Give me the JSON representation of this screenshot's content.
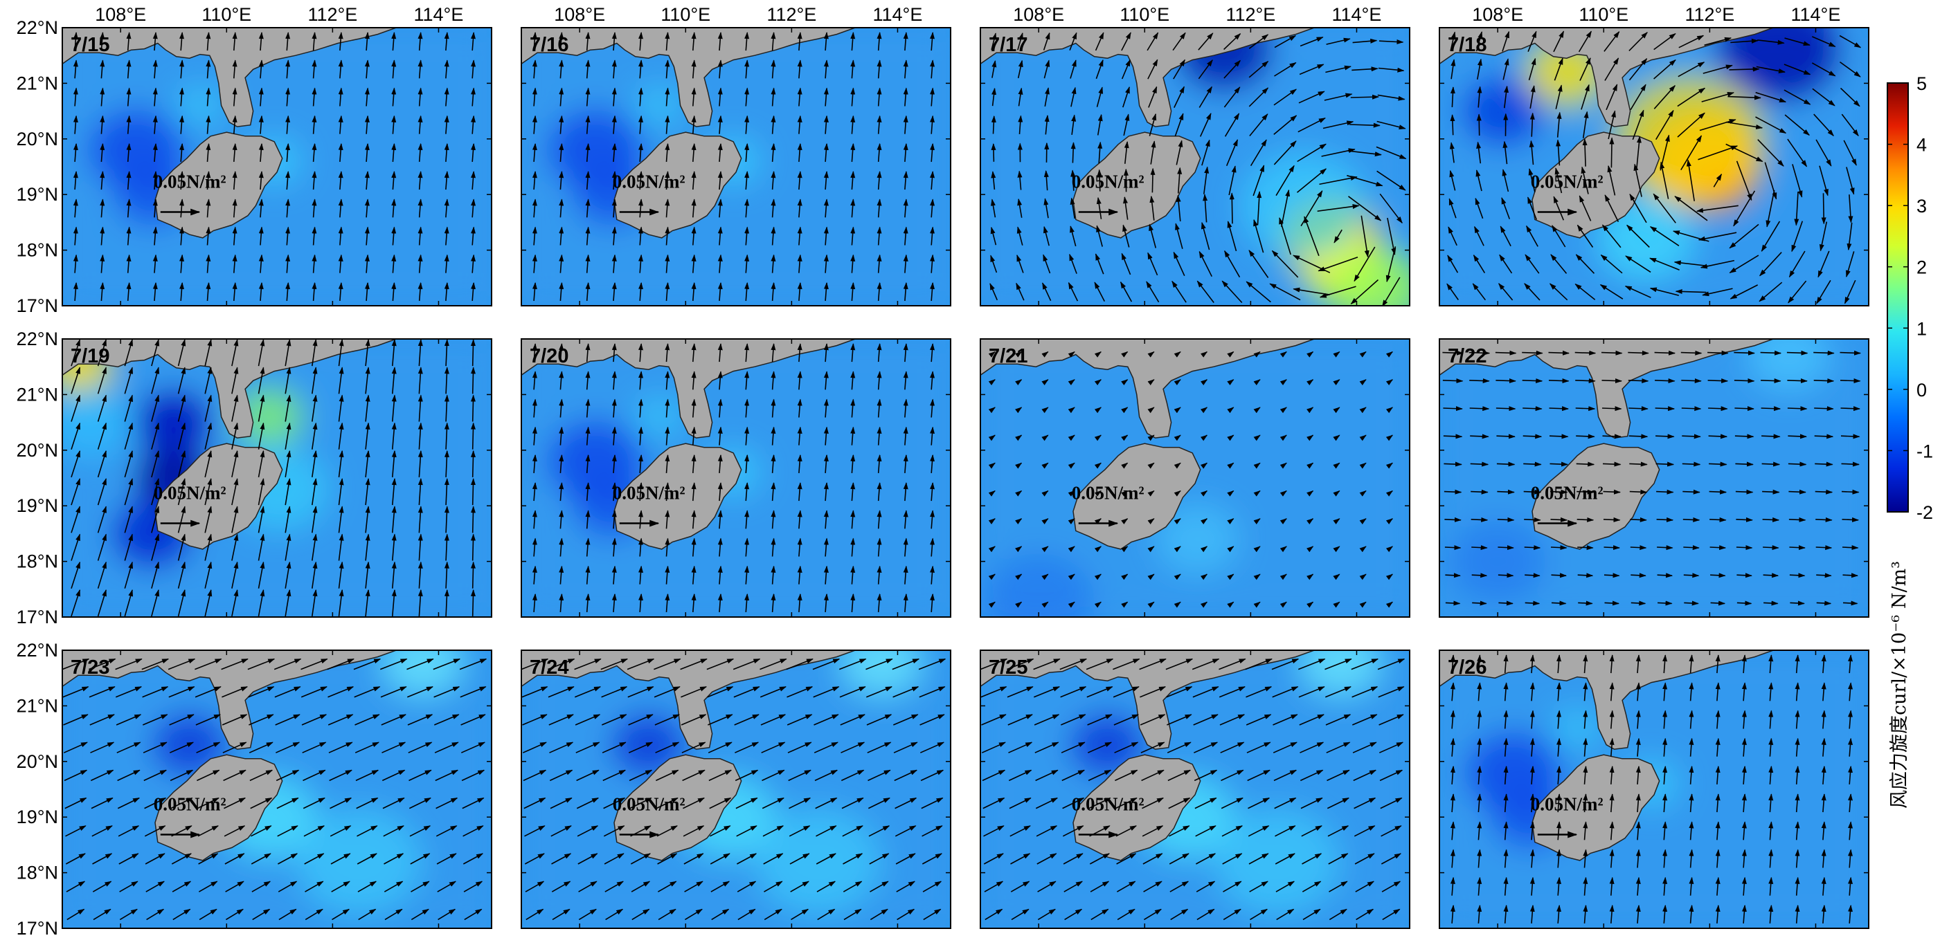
{
  "colorbar": {
    "label": "风应力旋度curl/×10⁻⁶ N/m³",
    "ticks": [
      "5",
      "4",
      "3",
      "2",
      "1",
      "0",
      "-1",
      "-2"
    ],
    "range": [
      -2,
      5
    ],
    "colormap": [
      "#00008f",
      "#0050ff",
      "#2ea4ff",
      "#31d6ff",
      "#7dff83",
      "#d9ff27",
      "#ffd000",
      "#ff7a00",
      "#e21f00",
      "#800000"
    ]
  },
  "axes": {
    "lon_labels": [
      "108°E",
      "110°E",
      "112°E",
      "114°E"
    ],
    "lat_labels": [
      "22°N",
      "21°N",
      "20°N",
      "19°N",
      "18°N",
      "17°N"
    ],
    "lon_range": [
      106.9,
      115.0
    ],
    "lat_range": [
      17.0,
      22.0
    ]
  },
  "scale_label": "0.05N/m²",
  "colors": {
    "land": "#a9a9a9",
    "background_curl": "#2f97ee",
    "arrow": "#000000"
  },
  "panels": [
    {
      "date": "7/15",
      "wind": "south"
    },
    {
      "date": "7/16",
      "wind": "south"
    },
    {
      "date": "7/17",
      "wind": "typhoon-approach"
    },
    {
      "date": "7/18",
      "wind": "typhoon-landfall"
    },
    {
      "date": "7/19",
      "wind": "strong-south"
    },
    {
      "date": "7/20",
      "wind": "south"
    },
    {
      "date": "7/21",
      "wind": "weak"
    },
    {
      "date": "7/22",
      "wind": "east"
    },
    {
      "date": "7/23",
      "wind": "southwest"
    },
    {
      "date": "7/24",
      "wind": "southwest"
    },
    {
      "date": "7/25",
      "wind": "southwest"
    },
    {
      "date": "7/26",
      "wind": "south"
    }
  ]
}
